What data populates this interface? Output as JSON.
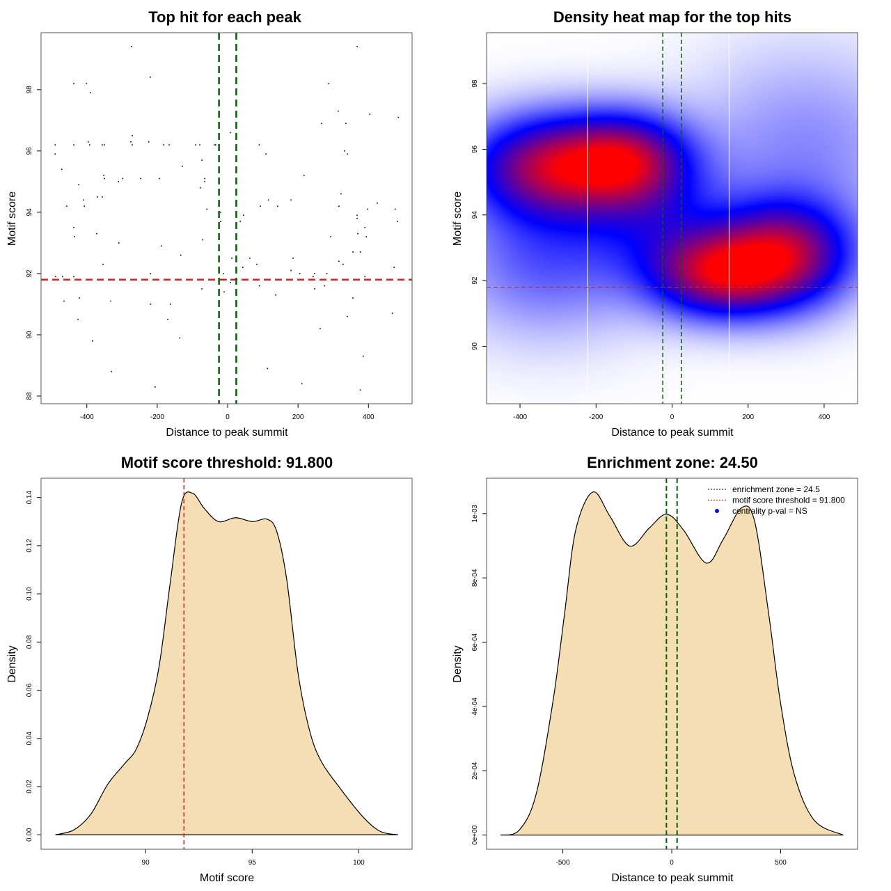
{
  "colors": {
    "green": "#006400",
    "red": "#cc2222",
    "fill": "#f5deb3",
    "heat_low": "#ffffff",
    "heat_mid": "#0000ff",
    "heat_high": "#ff0000",
    "legend_dot": "#0000ff"
  },
  "chart_data": [
    {
      "id": "scatter",
      "type": "scatter",
      "title": "Top hit for each peak",
      "xlabel": "Distance to peak summit",
      "ylabel": "Motif score",
      "xlim": [
        -530,
        524
      ],
      "ylim": [
        87.75,
        99.86
      ],
      "xticks": [
        -400,
        -200,
        0,
        200,
        400
      ],
      "xtick_labels": [
        "-400",
        "-200",
        "0",
        "200",
        "400"
      ],
      "yticks": [
        88,
        90,
        92,
        94,
        96,
        98
      ],
      "ytick_labels": [
        "88",
        "90",
        "92",
        "94",
        "96",
        "98"
      ],
      "vlines": [
        -24.5,
        24.5
      ],
      "hline": 91.8,
      "points": [
        [
          -273,
          99.41
        ],
        [
          368,
          99.41
        ],
        [
          -219.5,
          98.41
        ],
        [
          -437,
          98.2
        ],
        [
          -401,
          98.2
        ],
        [
          287,
          98.2
        ],
        [
          -390,
          97.9
        ],
        [
          314,
          97.3
        ],
        [
          404,
          97.2
        ],
        [
          485,
          97.1
        ],
        [
          267,
          96.9
        ],
        [
          336,
          96.9
        ],
        [
          8,
          96.6
        ],
        [
          -271,
          96.5
        ],
        [
          -396,
          96.3
        ],
        [
          -275,
          96.3
        ],
        [
          -224,
          96.3
        ],
        [
          -490,
          96.2
        ],
        [
          -437,
          96.2
        ],
        [
          -392,
          96.2
        ],
        [
          -356,
          96.2
        ],
        [
          -350,
          96.2
        ],
        [
          -271,
          96.2
        ],
        [
          -182,
          96.2
        ],
        [
          -166,
          96.2
        ],
        [
          -91,
          96.2
        ],
        [
          -79,
          96.2
        ],
        [
          -38,
          96.2
        ],
        [
          -34,
          96.2
        ],
        [
          90,
          96.2
        ],
        [
          332,
          96.0
        ],
        [
          -490,
          95.9
        ],
        [
          109,
          95.9
        ],
        [
          340,
          95.9
        ],
        [
          -73,
          95.7
        ],
        [
          -129,
          95.5
        ],
        [
          -471,
          95.4
        ],
        [
          -352,
          95.2
        ],
        [
          217,
          95.2
        ],
        [
          -350,
          95.1
        ],
        [
          -298,
          95.1
        ],
        [
          -247,
          95.1
        ],
        [
          -194,
          95.1
        ],
        [
          -65,
          95.1
        ],
        [
          -310,
          95.0
        ],
        [
          -65,
          95.0
        ],
        [
          -423,
          94.9
        ],
        [
          -77,
          94.8
        ],
        [
          322,
          94.6
        ],
        [
          -370,
          94.5
        ],
        [
          -356,
          94.5
        ],
        [
          -409,
          94.4
        ],
        [
          116,
          94.4
        ],
        [
          180,
          94.4
        ],
        [
          425,
          94.3
        ],
        [
          -457,
          94.2
        ],
        [
          -407,
          94.2
        ],
        [
          93,
          94.2
        ],
        [
          142,
          94.2
        ],
        [
          316,
          94.2
        ],
        [
          -59,
          94.1
        ],
        [
          397,
          94.1
        ],
        [
          476,
          94.1
        ],
        [
          -20,
          94.0
        ],
        [
          45,
          93.9
        ],
        [
          368,
          93.9
        ],
        [
          368,
          93.8
        ],
        [
          -20,
          93.7
        ],
        [
          36,
          93.7
        ],
        [
          483,
          93.7
        ],
        [
          -437,
          93.5
        ],
        [
          390,
          93.5
        ],
        [
          -372,
          93.3
        ],
        [
          370,
          93.3
        ],
        [
          -435,
          93.2
        ],
        [
          293,
          93.2
        ],
        [
          394,
          93.2
        ],
        [
          -71,
          93.1
        ],
        [
          -309,
          93.0
        ],
        [
          -188,
          92.9
        ],
        [
          356,
          92.7
        ],
        [
          377,
          92.7
        ],
        [
          -133,
          92.6
        ],
        [
          12,
          92.5
        ],
        [
          63,
          92.5
        ],
        [
          186,
          92.5
        ],
        [
          316,
          92.4
        ],
        [
          -354,
          92.3
        ],
        [
          83,
          92.3
        ],
        [
          328,
          92.3
        ],
        [
          43,
          92.2
        ],
        [
          473,
          92.2
        ],
        [
          180,
          92.1
        ],
        [
          -219,
          92.0
        ],
        [
          -12,
          92.0
        ],
        [
          205,
          92.0
        ],
        [
          247,
          92.0
        ],
        [
          282,
          92.0
        ],
        [
          -489,
          91.9
        ],
        [
          -469,
          91.9
        ],
        [
          -437,
          91.9
        ],
        [
          243,
          91.9
        ],
        [
          390,
          91.9
        ],
        [
          -4,
          91.8
        ],
        [
          8,
          91.7
        ],
        [
          90,
          91.6
        ],
        [
          275,
          91.6
        ],
        [
          -73,
          91.5
        ],
        [
          247,
          91.5
        ],
        [
          -10,
          91.4
        ],
        [
          136,
          91.3
        ],
        [
          -421,
          91.2
        ],
        [
          356,
          91.2
        ],
        [
          -465,
          91.1
        ],
        [
          -332,
          91.1
        ],
        [
          -219,
          91.0
        ],
        [
          -162,
          91.0
        ],
        [
          468,
          90.7
        ],
        [
          340,
          90.6
        ],
        [
          -425,
          90.5
        ],
        [
          -170,
          90.5
        ],
        [
          263,
          90.2
        ],
        [
          -136,
          89.9
        ],
        [
          -384,
          89.8
        ],
        [
          385,
          89.3
        ],
        [
          113,
          88.9
        ],
        [
          -330,
          88.8
        ],
        [
          211,
          88.4
        ],
        [
          -206,
          88.3
        ],
        [
          377,
          88.2
        ]
      ]
    },
    {
      "id": "heatmap",
      "type": "heatmap",
      "title": "Density heat map for the top hits",
      "xlabel": "Distance to peak summit",
      "ylabel": "Motif score",
      "xlim": [
        -488,
        488
      ],
      "ylim": [
        88.25,
        99.55
      ],
      "xticks": [
        -400,
        -200,
        0,
        200,
        400
      ],
      "xtick_labels": [
        "-400",
        "-200",
        "0",
        "200",
        "400"
      ],
      "yticks": [
        90,
        92,
        94,
        96,
        98
      ],
      "ytick_labels": [
        "90",
        "92",
        "94",
        "96",
        "98"
      ],
      "white_vlines": [
        -222,
        150
      ],
      "vlines": [
        -24.5,
        24.5
      ],
      "hline": 91.8,
      "density_peaks": [
        {
          "x": -310,
          "y": 95.5,
          "sx": 150,
          "sy": 1.05,
          "w": 1.0
        },
        {
          "x": -110,
          "y": 95.7,
          "sx": 110,
          "sy": 0.95,
          "w": 0.75
        },
        {
          "x": 120,
          "y": 92.2,
          "sx": 120,
          "sy": 0.9,
          "w": 0.95
        },
        {
          "x": 300,
          "y": 92.8,
          "sx": 120,
          "sy": 1.1,
          "w": 0.95
        },
        {
          "x": -330,
          "y": 92.8,
          "sx": 170,
          "sy": 1.6,
          "w": 0.35
        },
        {
          "x": 350,
          "y": 96.0,
          "sx": 200,
          "sy": 2.0,
          "w": 0.22
        },
        {
          "x": -30,
          "y": 93.8,
          "sx": 130,
          "sy": 1.3,
          "w": 0.35
        }
      ]
    },
    {
      "id": "score-density",
      "type": "area",
      "title": "Motif score threshold: 91.800",
      "xlabel": "Motif score",
      "ylabel": "Density",
      "xlim": [
        85.1,
        102.5
      ],
      "ylim": [
        -0.006,
        0.148
      ],
      "xticks": [
        90,
        95,
        100
      ],
      "xtick_labels": [
        "90",
        "95",
        "100"
      ],
      "yticks": [
        0.0,
        0.02,
        0.04,
        0.06,
        0.08,
        0.1,
        0.12,
        0.14
      ],
      "ytick_labels": [
        "0.00",
        "0.02",
        "0.04",
        "0.06",
        "0.08",
        "0.10",
        "0.12",
        "0.14"
      ],
      "vline": 91.8,
      "x": [
        85.77,
        86.63,
        87.43,
        88.23,
        89.03,
        89.56,
        90.09,
        90.63,
        91.16,
        91.69,
        92.2,
        92.76,
        93.42,
        94.22,
        95.02,
        95.69,
        96.15,
        96.62,
        97.15,
        97.68,
        98.22,
        99.15,
        100.21,
        101.01,
        101.84
      ],
      "y": [
        0,
        0.002,
        0.0085,
        0.021,
        0.0296,
        0.0355,
        0.0484,
        0.0696,
        0.1048,
        0.1377,
        0.1418,
        0.1354,
        0.13,
        0.1316,
        0.13,
        0.131,
        0.126,
        0.106,
        0.0672,
        0.0437,
        0.0308,
        0.019,
        0.0073,
        0.0014,
        0
      ]
    },
    {
      "id": "distance-density",
      "type": "area",
      "title": "Enrichment zone: 24.50",
      "xlabel": "Distance to peak summit",
      "ylabel": "Density",
      "xlim": [
        -850,
        853
      ],
      "ylim": [
        -4.4e-05,
        0.00111
      ],
      "xticks": [
        -500,
        0,
        500
      ],
      "xtick_labels": [
        "-500",
        "0",
        "500"
      ],
      "yticks": [
        0,
        0.0002,
        0.0004,
        0.0006,
        0.0008,
        0.001
      ],
      "ytick_labels": [
        "0e+00",
        "2e-04",
        "4e-04",
        "6e-04",
        "8e-04",
        "1e-03"
      ],
      "vlines": [
        -24.5,
        24.5
      ],
      "x": [
        -786,
        -701,
        -623,
        -545,
        -493,
        -441,
        -362,
        -284,
        -193,
        -102,
        -23,
        55,
        159,
        237,
        322,
        381,
        446,
        498,
        563,
        654,
        787
      ],
      "y": [
        0,
        1.5e-05,
        0.000126,
        0.000417,
        0.000683,
        0.000948,
        0.001067,
        0.000992,
        0.000899,
        0.000956,
        0.000998,
        0.000948,
        0.000846,
        0.000921,
        0.001019,
        0.000974,
        0.000683,
        0.000417,
        0.000187,
        4.6e-05,
        0
      ],
      "legend": [
        {
          "label": "enrichment zone = 24.5",
          "kind": "line",
          "color": "green"
        },
        {
          "label": "motif score threshold = 91.800",
          "kind": "line",
          "color": "red"
        },
        {
          "label": "centrality p-val = NS",
          "kind": "dot",
          "color": "legend_dot"
        }
      ]
    }
  ]
}
